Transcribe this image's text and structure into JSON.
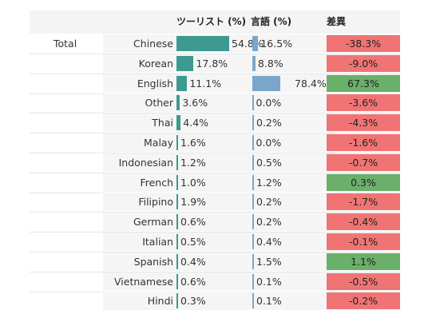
{
  "chart_data": {
    "type": "table",
    "headers": {
      "tourist": "ツーリスト (%)",
      "language": "言語 (%)",
      "diff": "差異"
    },
    "group_label": "Total",
    "rows": [
      {
        "name": "Chinese",
        "tourist": 54.8,
        "tourist_label": "54.8%",
        "language": 16.5,
        "language_label": "16.5%",
        "diff": -38.3,
        "diff_label": "-38.3%"
      },
      {
        "name": "Korean",
        "tourist": 17.8,
        "tourist_label": "17.8%",
        "language": 8.8,
        "language_label": "8.8%",
        "diff": -9.0,
        "diff_label": "-9.0%"
      },
      {
        "name": "English",
        "tourist": 11.1,
        "tourist_label": "11.1%",
        "language": 78.4,
        "language_label": "78.4%",
        "diff": 67.3,
        "diff_label": "67.3%"
      },
      {
        "name": "Other",
        "tourist": 3.6,
        "tourist_label": "3.6%",
        "language": 0.0,
        "language_label": "0.0%",
        "diff": -3.6,
        "diff_label": "-3.6%"
      },
      {
        "name": "Thai",
        "tourist": 4.4,
        "tourist_label": "4.4%",
        "language": 0.2,
        "language_label": "0.2%",
        "diff": -4.3,
        "diff_label": "-4.3%"
      },
      {
        "name": "Malay",
        "tourist": 1.6,
        "tourist_label": "1.6%",
        "language": 0.0,
        "language_label": "0.0%",
        "diff": -1.6,
        "diff_label": "-1.6%"
      },
      {
        "name": "Indonesian",
        "tourist": 1.2,
        "tourist_label": "1.2%",
        "language": 0.5,
        "language_label": "0.5%",
        "diff": -0.7,
        "diff_label": "-0.7%"
      },
      {
        "name": "French",
        "tourist": 1.0,
        "tourist_label": "1.0%",
        "language": 1.2,
        "language_label": "1.2%",
        "diff": 0.3,
        "diff_label": "0.3%"
      },
      {
        "name": "Filipino",
        "tourist": 1.9,
        "tourist_label": "1.9%",
        "language": 0.2,
        "language_label": "0.2%",
        "diff": -1.7,
        "diff_label": "-1.7%"
      },
      {
        "name": "German",
        "tourist": 0.6,
        "tourist_label": "0.6%",
        "language": 0.2,
        "language_label": "0.2%",
        "diff": -0.4,
        "diff_label": "-0.4%"
      },
      {
        "name": "Italian",
        "tourist": 0.5,
        "tourist_label": "0.5%",
        "language": 0.4,
        "language_label": "0.4%",
        "diff": -0.1,
        "diff_label": "-0.1%"
      },
      {
        "name": "Spanish",
        "tourist": 0.4,
        "tourist_label": "0.4%",
        "language": 1.5,
        "language_label": "1.5%",
        "diff": 1.1,
        "diff_label": "1.1%"
      },
      {
        "name": "Vietnamese",
        "tourist": 0.6,
        "tourist_label": "0.6%",
        "language": 0.1,
        "language_label": "0.1%",
        "diff": -0.5,
        "diff_label": "-0.5%"
      },
      {
        "name": "Hindi",
        "tourist": 0.3,
        "tourist_label": "0.3%",
        "language": 0.1,
        "language_label": "0.1%",
        "diff": -0.2,
        "diff_label": "-0.2%"
      }
    ],
    "colors": {
      "tourist_bar": "#3d9a91",
      "language_bar": "#7aa6cc",
      "diff_positive": "#6aaf6a",
      "diff_negative": "#f07474"
    }
  }
}
